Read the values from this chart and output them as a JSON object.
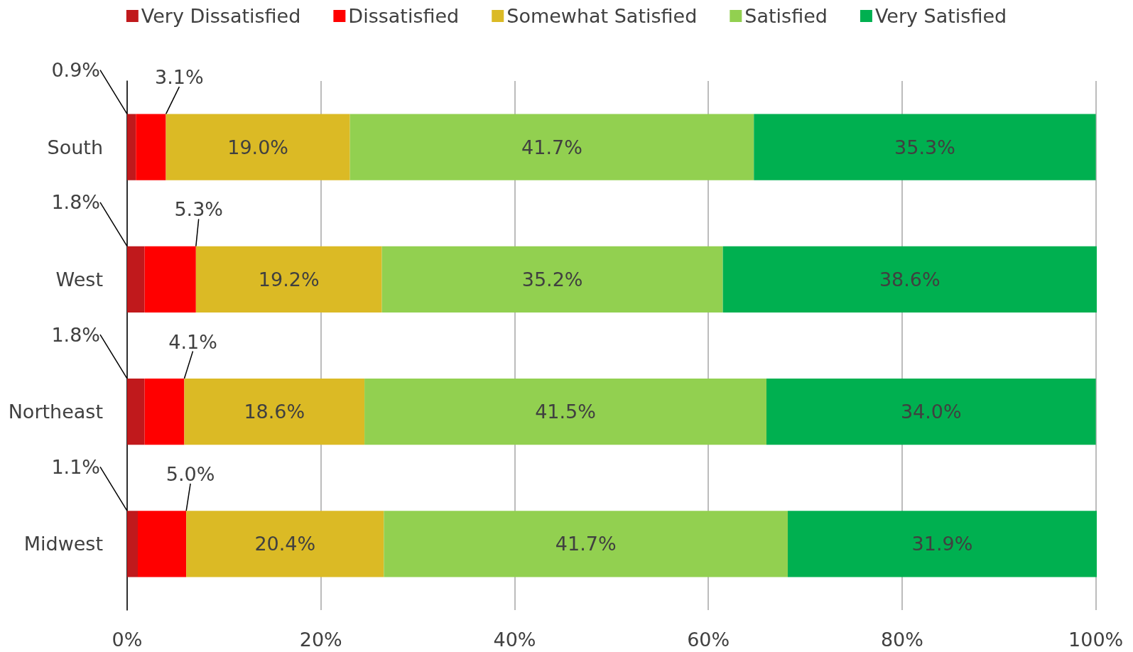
{
  "chart_data": {
    "type": "bar",
    "orientation": "horizontal",
    "stacked": true,
    "legend": "top",
    "grid": "x",
    "categories": [
      "South",
      "West",
      "Northeast",
      "Midwest"
    ],
    "series": [
      {
        "name": "Very Dissatisfied",
        "color": "#c0191c",
        "values": [
          0.9,
          1.8,
          1.8,
          1.1
        ],
        "value_labels": [
          "0.9%",
          "1.8%",
          "1.8%",
          "1.1%"
        ]
      },
      {
        "name": "Dissatisfied",
        "color": "#ff0000",
        "values": [
          3.1,
          5.3,
          4.1,
          5.0
        ],
        "value_labels": [
          "3.1%",
          "5.3%",
          "4.1%",
          "5.0%"
        ]
      },
      {
        "name": "Somewhat Satisfied",
        "color": "#dbba25",
        "values": [
          19.0,
          19.2,
          18.6,
          20.4
        ],
        "value_labels": [
          "19.0%",
          "19.2%",
          "18.6%",
          "20.4%"
        ]
      },
      {
        "name": "Satisfied",
        "color": "#92d050",
        "values": [
          41.7,
          35.2,
          41.5,
          41.7
        ],
        "value_labels": [
          "41.7%",
          "35.2%",
          "41.5%",
          "41.7%"
        ]
      },
      {
        "name": "Very Satisfied",
        "color": "#00b050",
        "values": [
          35.3,
          38.6,
          34.0,
          31.9
        ],
        "value_labels": [
          "35.3%",
          "38.6%",
          "34.0%",
          "31.9%"
        ]
      }
    ],
    "xlim": [
      0,
      100.1
    ],
    "xticks": [
      {
        "value": 0,
        "label": "0%"
      },
      {
        "value": 20,
        "label": "20%"
      },
      {
        "value": 40,
        "label": "40%"
      },
      {
        "value": 60,
        "label": "60%"
      },
      {
        "value": 80,
        "label": "80%"
      },
      {
        "value": 100,
        "label": "100%"
      }
    ]
  }
}
